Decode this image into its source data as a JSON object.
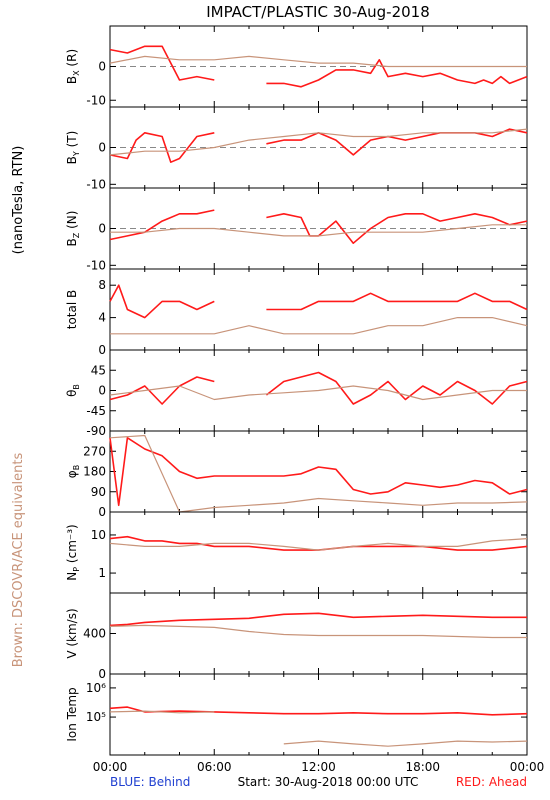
{
  "title": "IMPACT/PLASTIC   30-Aug-2018",
  "left_group_label": "(nanoTesla, RTN)",
  "left_brown_label": "Brown: DSCOVR/ACE equivalents",
  "x_ticks": [
    "00:00",
    "06:00",
    "12:00",
    "18:00",
    "00:00"
  ],
  "footer": {
    "blue": "BLUE: Behind",
    "start": "Start: 30-Aug-2018 00:00 UTC",
    "red": "RED: Ahead"
  },
  "colors": {
    "ahead": "#ff1a1a",
    "equiv": "#c8947a",
    "behind": "#1f3fd0",
    "brown_text": "#c8947a"
  },
  "chart_data": [
    {
      "type": "scatter",
      "id": "bx",
      "ylabel_main": "B",
      "ylabel_sub": "X",
      "ylabel_tail": "(R)",
      "ylim": [
        -12,
        12
      ],
      "yticks": [
        {
          "v": 0,
          "t": "0"
        },
        {
          "v": -10,
          "t": "-10"
        }
      ],
      "zero_line": true,
      "log": false,
      "series": [
        {
          "color": "ahead",
          "x": [
            0,
            1,
            2,
            3,
            3.5,
            4,
            5,
            6,
            8,
            9,
            10,
            11,
            12,
            13,
            14,
            15,
            15.5,
            16,
            17,
            18,
            19,
            20,
            21,
            21.5,
            22,
            22.5,
            23,
            24
          ],
          "y": [
            5,
            4,
            6,
            6,
            1,
            -4,
            -3,
            -4,
            null,
            -5,
            -5,
            -6,
            -4,
            -1,
            -1,
            -2,
            2,
            -3,
            -2,
            -3,
            -2,
            -4,
            -5,
            -4,
            -5,
            -3,
            -5,
            -3
          ]
        },
        {
          "color": "equiv",
          "x": [
            0,
            2,
            4,
            6,
            8,
            10,
            12,
            14,
            16,
            18,
            20,
            22,
            24
          ],
          "y": [
            1,
            3,
            2,
            2,
            3,
            2,
            1,
            1,
            0,
            0,
            0,
            0,
            0
          ]
        }
      ]
    },
    {
      "type": "scatter",
      "id": "by",
      "ylabel_main": "B",
      "ylabel_sub": "Y",
      "ylabel_tail": "(T)",
      "ylim": [
        -11,
        11
      ],
      "yticks": [
        {
          "v": 0,
          "t": "0"
        },
        {
          "v": -10,
          "t": "-10"
        }
      ],
      "zero_line": true,
      "log": false,
      "series": [
        {
          "color": "ahead",
          "x": [
            0,
            1,
            1.5,
            2,
            3,
            3.5,
            4,
            5,
            6,
            8,
            9,
            10,
            11,
            12,
            13,
            14,
            15,
            16,
            17,
            18,
            19,
            20,
            21,
            22,
            23,
            24
          ],
          "y": [
            -2,
            -3,
            2,
            4,
            3,
            -4,
            -3,
            3,
            4,
            null,
            1,
            2,
            2,
            4,
            2,
            -2,
            2,
            3,
            2,
            3,
            4,
            4,
            4,
            3,
            5,
            4
          ]
        },
        {
          "color": "equiv",
          "x": [
            0,
            2,
            4,
            6,
            8,
            10,
            12,
            14,
            16,
            18,
            20,
            22,
            24
          ],
          "y": [
            -2,
            -1,
            -1,
            0,
            2,
            3,
            4,
            3,
            3,
            4,
            4,
            4,
            5
          ]
        }
      ]
    },
    {
      "type": "scatter",
      "id": "bz",
      "ylabel_main": "B",
      "ylabel_sub": "Z",
      "ylabel_tail": "(N)",
      "ylim": [
        -11,
        11
      ],
      "yticks": [
        {
          "v": 0,
          "t": "0"
        },
        {
          "v": -10,
          "t": "-10"
        }
      ],
      "zero_line": true,
      "log": false,
      "series": [
        {
          "color": "ahead",
          "x": [
            0,
            1,
            2,
            3,
            3.5,
            4,
            5,
            6,
            8,
            9,
            10,
            11,
            11.5,
            12,
            13,
            14,
            15,
            16,
            17,
            18,
            19,
            20,
            21,
            22,
            23,
            24
          ],
          "y": [
            -3,
            -2,
            -1,
            2,
            3,
            4,
            4,
            5,
            null,
            3,
            4,
            3,
            -2,
            -2,
            2,
            -4,
            0,
            3,
            4,
            4,
            2,
            3,
            4,
            3,
            1,
            2
          ]
        },
        {
          "color": "equiv",
          "x": [
            0,
            2,
            4,
            6,
            8,
            10,
            12,
            14,
            16,
            18,
            20,
            22,
            24
          ],
          "y": [
            -1,
            -1,
            0,
            0,
            -1,
            -2,
            -2,
            -1,
            -1,
            -1,
            0,
            1,
            1
          ]
        }
      ]
    },
    {
      "type": "scatter",
      "id": "tb",
      "ylabel_main": "total B",
      "ylabel_sub": "",
      "ylabel_tail": "",
      "ylim": [
        0,
        10
      ],
      "yticks": [
        {
          "v": 0,
          "t": "0"
        },
        {
          "v": 4,
          "t": "4"
        },
        {
          "v": 8,
          "t": "8"
        }
      ],
      "zero_line": false,
      "log": false,
      "series": [
        {
          "color": "ahead",
          "x": [
            0,
            0.5,
            1,
            2,
            3,
            4,
            5,
            6,
            8,
            9,
            10,
            11,
            12,
            13,
            14,
            15,
            16,
            17,
            18,
            19,
            20,
            21,
            22,
            23,
            24
          ],
          "y": [
            6,
            8,
            5,
            4,
            6,
            6,
            5,
            6,
            null,
            5,
            5,
            5,
            6,
            6,
            6,
            7,
            6,
            6,
            6,
            6,
            6,
            7,
            6,
            6,
            5
          ]
        },
        {
          "color": "equiv",
          "x": [
            0,
            2,
            4,
            6,
            8,
            10,
            12,
            14,
            16,
            18,
            20,
            22,
            24
          ],
          "y": [
            2,
            2,
            2,
            2,
            3,
            2,
            2,
            2,
            3,
            3,
            4,
            4,
            3
          ]
        }
      ]
    },
    {
      "type": "scatter",
      "id": "theta",
      "ylabel_main": "θ",
      "ylabel_sub": "B",
      "ylabel_tail": "",
      "ylim": [
        -90,
        90
      ],
      "yticks": [
        {
          "v": 45,
          "t": "45"
        },
        {
          "v": 0,
          "t": "0"
        },
        {
          "v": -45,
          "t": "-45"
        },
        {
          "v": -90,
          "t": "-90"
        }
      ],
      "zero_line": false,
      "log": false,
      "series": [
        {
          "color": "ahead",
          "x": [
            0,
            1,
            2,
            3,
            4,
            5,
            6,
            8,
            9,
            10,
            11,
            12,
            13,
            14,
            15,
            16,
            17,
            18,
            19,
            20,
            21,
            22,
            23,
            24
          ],
          "y": [
            -20,
            -10,
            10,
            -30,
            10,
            30,
            20,
            null,
            -10,
            20,
            30,
            40,
            20,
            -30,
            -10,
            20,
            -20,
            10,
            -10,
            20,
            0,
            -30,
            10,
            20
          ]
        },
        {
          "color": "equiv",
          "x": [
            0,
            2,
            4,
            6,
            8,
            10,
            12,
            14,
            16,
            18,
            20,
            22,
            24
          ],
          "y": [
            -10,
            0,
            10,
            -20,
            -10,
            -5,
            0,
            10,
            0,
            -20,
            -10,
            0,
            0
          ]
        }
      ]
    },
    {
      "type": "scatter",
      "id": "phi",
      "ylabel_main": "φ",
      "ylabel_sub": "B",
      "ylabel_tail": "",
      "ylim": [
        0,
        360
      ],
      "yticks": [
        {
          "v": 270,
          "t": "270"
        },
        {
          "v": 180,
          "t": "180"
        },
        {
          "v": 90,
          "t": "90"
        },
        {
          "v": 0,
          "t": "0"
        }
      ],
      "zero_line": false,
      "log": false,
      "series": [
        {
          "color": "ahead",
          "x": [
            0,
            0.5,
            1,
            2,
            3,
            4,
            5,
            6,
            9,
            10,
            11,
            12,
            13,
            14,
            15,
            16,
            17,
            18,
            19,
            20,
            21,
            22,
            23,
            24
          ],
          "y": [
            330,
            30,
            330,
            280,
            250,
            180,
            150,
            160,
            160,
            160,
            170,
            200,
            190,
            100,
            80,
            90,
            130,
            120,
            110,
            120,
            140,
            130,
            80,
            100
          ]
        },
        {
          "color": "equiv",
          "x": [
            0,
            2,
            4,
            6,
            8,
            10,
            12,
            14,
            16,
            18,
            20,
            22,
            24
          ],
          "y": [
            330,
            340,
            0,
            20,
            30,
            40,
            60,
            50,
            40,
            30,
            40,
            40,
            45
          ]
        }
      ]
    },
    {
      "type": "scatter",
      "id": "np",
      "ylabel_main": "N",
      "ylabel_sub": "P",
      "ylabel_tail": "(cm⁻³)",
      "ylim": [
        0.3,
        40
      ],
      "yticks": [
        {
          "v": 10,
          "t": "10"
        },
        {
          "v": 1,
          "t": "1"
        }
      ],
      "zero_line": false,
      "log": true,
      "series": [
        {
          "color": "ahead",
          "x": [
            0,
            1,
            2,
            3,
            4,
            5,
            6,
            8,
            10,
            12,
            14,
            16,
            18,
            20,
            22,
            24
          ],
          "y": [
            8,
            9,
            7,
            7,
            6,
            6,
            5,
            5,
            4,
            4,
            5,
            5,
            5,
            4,
            4,
            5
          ]
        },
        {
          "color": "equiv",
          "x": [
            0,
            2,
            4,
            6,
            8,
            10,
            12,
            14,
            16,
            18,
            20,
            22,
            24
          ],
          "y": [
            6,
            5,
            5,
            6,
            6,
            5,
            4,
            5,
            6,
            5,
            5,
            7,
            8
          ]
        }
      ]
    },
    {
      "type": "scatter",
      "id": "v",
      "ylabel_main": "V (km/s)",
      "ylabel_sub": "",
      "ylabel_tail": "",
      "ylim": [
        0,
        800
      ],
      "yticks": [
        {
          "v": 400,
          "t": "400"
        },
        {
          "v": 0,
          "t": "0"
        }
      ],
      "zero_line": false,
      "log": false,
      "series": [
        {
          "color": "ahead",
          "x": [
            0,
            1,
            2,
            4,
            6,
            8,
            10,
            12,
            14,
            16,
            18,
            20,
            22,
            24
          ],
          "y": [
            480,
            490,
            510,
            530,
            540,
            550,
            590,
            600,
            560,
            570,
            580,
            570,
            560,
            560
          ]
        },
        {
          "color": "equiv",
          "x": [
            0,
            2,
            4,
            6,
            8,
            10,
            12,
            14,
            16,
            18,
            20,
            22,
            24
          ],
          "y": [
            470,
            480,
            470,
            460,
            420,
            390,
            380,
            380,
            380,
            380,
            370,
            360,
            360
          ]
        }
      ]
    },
    {
      "type": "scatter",
      "id": "temp",
      "ylabel_main": "Ion Temp",
      "ylabel_sub": "",
      "ylabel_tail": "",
      "ylim": [
        5000,
        3000000
      ],
      "yticks": [
        {
          "v": 1000000,
          "t": "10⁶"
        },
        {
          "v": 100000,
          "t": "10⁵"
        }
      ],
      "zero_line": false,
      "log": true,
      "series": [
        {
          "color": "ahead",
          "x": [
            0,
            1,
            2,
            4,
            6,
            8,
            10,
            12,
            14,
            16,
            18,
            20,
            22,
            24
          ],
          "y": [
            200000,
            220000,
            150000,
            160000,
            150000,
            140000,
            130000,
            130000,
            140000,
            130000,
            130000,
            140000,
            120000,
            130000
          ]
        },
        {
          "color": "equiv",
          "x": [
            0,
            2,
            4,
            6,
            8,
            10,
            12,
            14,
            16,
            18,
            20,
            22,
            24
          ],
          "y": [
            150000,
            160000,
            140000,
            150000,
            null,
            12000,
            15000,
            12000,
            10000,
            12000,
            15000,
            14000,
            15000
          ]
        }
      ]
    }
  ]
}
